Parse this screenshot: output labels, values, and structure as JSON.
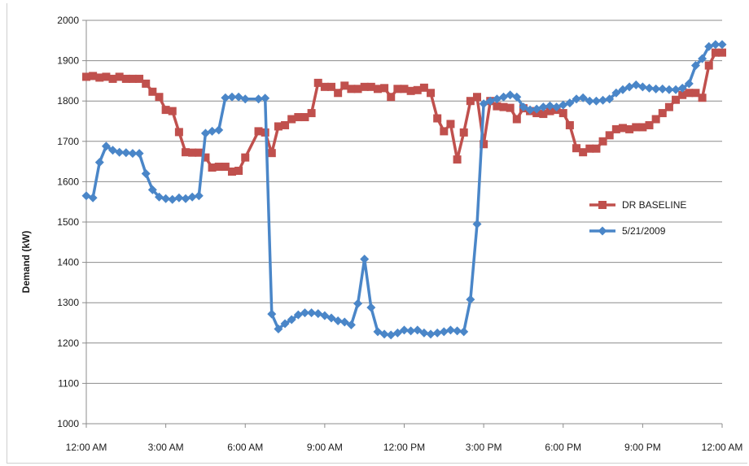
{
  "chart_data": {
    "type": "line",
    "title": "",
    "xlabel": "",
    "ylabel": "Demand (kW)",
    "ylim": [
      1000,
      2000
    ],
    "yticks": [
      1000,
      1100,
      1200,
      1300,
      1400,
      1500,
      1600,
      1700,
      1800,
      1900,
      2000
    ],
    "xlim": [
      0,
      24
    ],
    "xtick_labels": [
      "12:00 AM",
      "3:00 AM",
      "6:00 AM",
      "9:00 AM",
      "12:00 PM",
      "3:00 PM",
      "6:00 PM",
      "9:00 PM",
      "12:00 AM"
    ],
    "grid": true,
    "legend_position": "right",
    "series": [
      {
        "name": "DR BASELINE",
        "color": "#c0504d",
        "marker": "square",
        "x": [
          0.0,
          0.25,
          0.5,
          0.75,
          1.0,
          1.25,
          1.5,
          1.75,
          2.0,
          2.25,
          2.5,
          2.75,
          3.0,
          3.25,
          3.5,
          3.75,
          4.0,
          4.25,
          4.5,
          4.75,
          5.0,
          5.25,
          5.5,
          5.75,
          6.0,
          6.5,
          6.75,
          7.0,
          7.25,
          7.5,
          7.75,
          8.0,
          8.25,
          8.5,
          8.75,
          9.0,
          9.25,
          9.5,
          9.75,
          10.0,
          10.25,
          10.5,
          10.75,
          11.0,
          11.25,
          11.5,
          11.75,
          12.0,
          12.25,
          12.5,
          12.75,
          13.0,
          13.25,
          13.5,
          13.75,
          14.0,
          14.25,
          14.5,
          14.75,
          15.0,
          15.25,
          15.5,
          15.75,
          16.0,
          16.25,
          16.5,
          16.75,
          17.0,
          17.25,
          17.5,
          17.75,
          18.0,
          18.25,
          18.5,
          18.75,
          19.0,
          19.25,
          19.5,
          19.75,
          20.0,
          20.25,
          20.5,
          20.75,
          21.0,
          21.25,
          21.5,
          21.75,
          22.0,
          22.25,
          22.5,
          22.75,
          23.0,
          23.25,
          23.5,
          23.75,
          24.0
        ],
        "values": [
          1860,
          1862,
          1858,
          1860,
          1855,
          1860,
          1855,
          1855,
          1855,
          1843,
          1823,
          1810,
          1778,
          1775,
          1723,
          1673,
          1672,
          1672,
          1660,
          1635,
          1637,
          1637,
          1625,
          1627,
          1660,
          1725,
          1722,
          1671,
          1737,
          1740,
          1755,
          1760,
          1760,
          1770,
          1845,
          1835,
          1835,
          1820,
          1838,
          1830,
          1830,
          1835,
          1835,
          1830,
          1832,
          1810,
          1830,
          1830,
          1825,
          1827,
          1833,
          1820,
          1757,
          1725,
          1743,
          1655,
          1722,
          1800,
          1810,
          1693,
          1800,
          1787,
          1785,
          1783,
          1755,
          1782,
          1775,
          1770,
          1768,
          1775,
          1778,
          1770,
          1740,
          1683,
          1673,
          1682,
          1682,
          1700,
          1715,
          1730,
          1733,
          1730,
          1735,
          1735,
          1740,
          1755,
          1770,
          1785,
          1803,
          1815,
          1820,
          1820,
          1808,
          1888,
          1920,
          1920
        ]
      },
      {
        "name": "5/21/2009",
        "color": "#4a86c8",
        "marker": "diamond",
        "x": [
          0.0,
          0.25,
          0.5,
          0.75,
          1.0,
          1.25,
          1.5,
          1.75,
          2.0,
          2.25,
          2.5,
          2.75,
          3.0,
          3.25,
          3.5,
          3.75,
          4.0,
          4.25,
          4.5,
          4.75,
          5.0,
          5.25,
          5.5,
          5.75,
          6.0,
          6.5,
          6.75,
          7.0,
          7.25,
          7.5,
          7.75,
          8.0,
          8.25,
          8.5,
          8.75,
          9.0,
          9.25,
          9.5,
          9.75,
          10.0,
          10.25,
          10.5,
          10.75,
          11.0,
          11.25,
          11.5,
          11.75,
          12.0,
          12.25,
          12.5,
          12.75,
          13.0,
          13.25,
          13.5,
          13.75,
          14.0,
          14.25,
          14.5,
          14.75,
          15.0,
          15.25,
          15.5,
          15.75,
          16.0,
          16.25,
          16.5,
          16.75,
          17.0,
          17.25,
          17.5,
          17.75,
          18.0,
          18.25,
          18.5,
          18.75,
          19.0,
          19.25,
          19.5,
          19.75,
          20.0,
          20.25,
          20.5,
          20.75,
          21.0,
          21.25,
          21.5,
          21.75,
          22.0,
          22.25,
          22.5,
          22.75,
          23.0,
          23.25,
          23.5,
          23.75,
          24.0
        ],
        "values": [
          1565,
          1560,
          1648,
          1688,
          1678,
          1673,
          1672,
          1670,
          1670,
          1620,
          1580,
          1562,
          1558,
          1556,
          1560,
          1558,
          1562,
          1565,
          1720,
          1725,
          1728,
          1808,
          1810,
          1810,
          1805,
          1805,
          1807,
          1272,
          1235,
          1248,
          1258,
          1270,
          1275,
          1275,
          1273,
          1268,
          1262,
          1255,
          1252,
          1245,
          1298,
          1408,
          1288,
          1228,
          1222,
          1220,
          1225,
          1232,
          1230,
          1232,
          1225,
          1222,
          1225,
          1228,
          1232,
          1230,
          1228,
          1308,
          1495,
          1793,
          1800,
          1805,
          1810,
          1815,
          1810,
          1785,
          1778,
          1780,
          1785,
          1788,
          1785,
          1790,
          1795,
          1805,
          1808,
          1800,
          1800,
          1802,
          1805,
          1820,
          1828,
          1835,
          1840,
          1835,
          1832,
          1830,
          1830,
          1828,
          1828,
          1832,
          1843,
          1888,
          1905,
          1935,
          1940,
          1940
        ]
      }
    ]
  }
}
